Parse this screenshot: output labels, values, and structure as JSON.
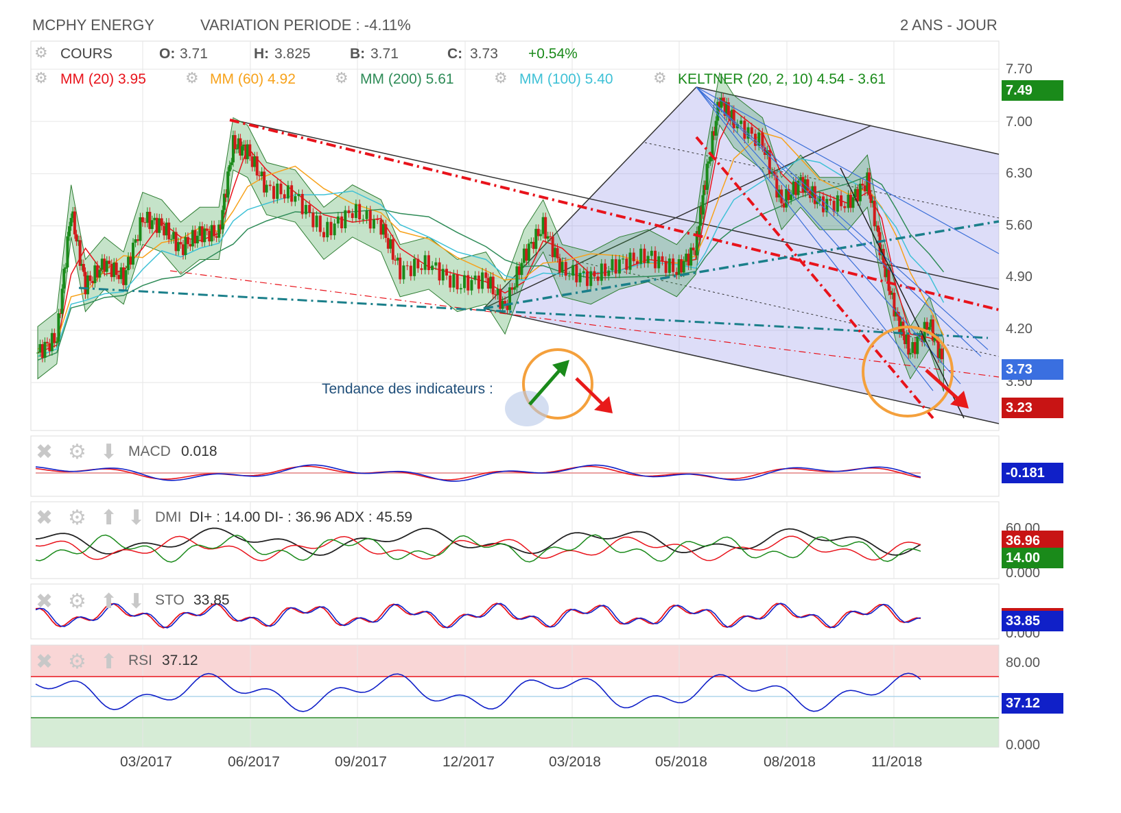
{
  "header": {
    "title": "MCPHY ENERGY",
    "variation": "VARIATION PERIODE : -4.11%",
    "period": "2 ANS - JOUR"
  },
  "legend": {
    "cours_label": "COURS",
    "o_key": "O:",
    "o_val": "3.71",
    "h_key": "H:",
    "h_val": "3.825",
    "b_key": "B:",
    "b_val": "3.71",
    "c_key": "C:",
    "c_val": "3.73",
    "change": "+0.54%",
    "mm20": "MM (20)  3.95",
    "mm60": "MM (60)  4.92",
    "mm200": "MM (200)  5.61",
    "mm100": "MM (100)  5.40",
    "keltner": "KELTNER (20, 2, 10)  4.54 - 3.61"
  },
  "colors": {
    "mm20": "#e8131b",
    "mm60": "#f7a21b",
    "mm200": "#2e8b57",
    "mm100": "#3fc1d6",
    "keltner": "#1a8a1a",
    "up": "#1a8a1a",
    "down": "#d11a1a",
    "blue": "#1020c8"
  },
  "tendance": "Tendance des indicateurs :",
  "chart_data": {
    "type": "candlestick",
    "x_ticks": [
      "03/2017",
      "06/2017",
      "09/2017",
      "12/2017",
      "03/2018",
      "05/2018",
      "08/2018",
      "11/2018"
    ],
    "y_ticks": [
      "7.70",
      "7.00",
      "6.30",
      "5.60",
      "4.90",
      "4.20",
      "3.50"
    ],
    "ylim": [
      3.0,
      7.9
    ],
    "price_badges": [
      {
        "label": "7.49",
        "color": "#1a8a1a"
      },
      {
        "label": "3.73",
        "color": "#3a6fe0"
      },
      {
        "label": "3.23",
        "color": "#c81414"
      }
    ],
    "close_series": [
      {
        "t": 0.0,
        "v": 3.9
      },
      {
        "t": 0.02,
        "v": 4.1
      },
      {
        "t": 0.035,
        "v": 5.8
      },
      {
        "t": 0.05,
        "v": 4.8
      },
      {
        "t": 0.07,
        "v": 5.1
      },
      {
        "t": 0.09,
        "v": 4.9
      },
      {
        "t": 0.11,
        "v": 5.7
      },
      {
        "t": 0.13,
        "v": 5.6
      },
      {
        "t": 0.15,
        "v": 5.3
      },
      {
        "t": 0.17,
        "v": 5.5
      },
      {
        "t": 0.19,
        "v": 5.5
      },
      {
        "t": 0.205,
        "v": 6.7
      },
      {
        "t": 0.22,
        "v": 6.6
      },
      {
        "t": 0.24,
        "v": 6.1
      },
      {
        "t": 0.27,
        "v": 6.0
      },
      {
        "t": 0.3,
        "v": 5.5
      },
      {
        "t": 0.33,
        "v": 5.8
      },
      {
        "t": 0.36,
        "v": 5.6
      },
      {
        "t": 0.38,
        "v": 5.0
      },
      {
        "t": 0.41,
        "v": 5.1
      },
      {
        "t": 0.44,
        "v": 4.8
      },
      {
        "t": 0.47,
        "v": 4.9
      },
      {
        "t": 0.49,
        "v": 4.5
      },
      {
        "t": 0.51,
        "v": 5.2
      },
      {
        "t": 0.53,
        "v": 5.6
      },
      {
        "t": 0.55,
        "v": 5.0
      },
      {
        "t": 0.58,
        "v": 4.9
      },
      {
        "t": 0.61,
        "v": 5.1
      },
      {
        "t": 0.64,
        "v": 5.2
      },
      {
        "t": 0.67,
        "v": 5.0
      },
      {
        "t": 0.69,
        "v": 5.3
      },
      {
        "t": 0.7,
        "v": 6.2
      },
      {
        "t": 0.715,
        "v": 7.3
      },
      {
        "t": 0.73,
        "v": 7.0
      },
      {
        "t": 0.76,
        "v": 6.7
      },
      {
        "t": 0.78,
        "v": 5.9
      },
      {
        "t": 0.8,
        "v": 6.2
      },
      {
        "t": 0.82,
        "v": 5.9
      },
      {
        "t": 0.85,
        "v": 5.9
      },
      {
        "t": 0.87,
        "v": 6.2
      },
      {
        "t": 0.885,
        "v": 5.2
      },
      {
        "t": 0.9,
        "v": 4.4
      },
      {
        "t": 0.915,
        "v": 3.9
      },
      {
        "t": 0.935,
        "v": 4.3
      },
      {
        "t": 0.95,
        "v": 3.73
      }
    ]
  },
  "panels": {
    "macd": {
      "name": "MACD",
      "value": "0.018",
      "badge": "-0.181"
    },
    "dmi": {
      "name": "DMI",
      "value": "DI+ : 14.00 DI- : 36.96 ADX : 45.59",
      "y_top": "60.00",
      "y_bot": "0.000",
      "badge_di_minus": "36.96",
      "badge_di_plus": "14.00"
    },
    "sto": {
      "name": "STO",
      "value": "33.85",
      "y_bot": "0.000",
      "badge": "33.85"
    },
    "rsi": {
      "name": "RSI",
      "value": "37.12",
      "y_top": "80.00",
      "y_bot": "0.000",
      "badge": "37.12"
    }
  }
}
